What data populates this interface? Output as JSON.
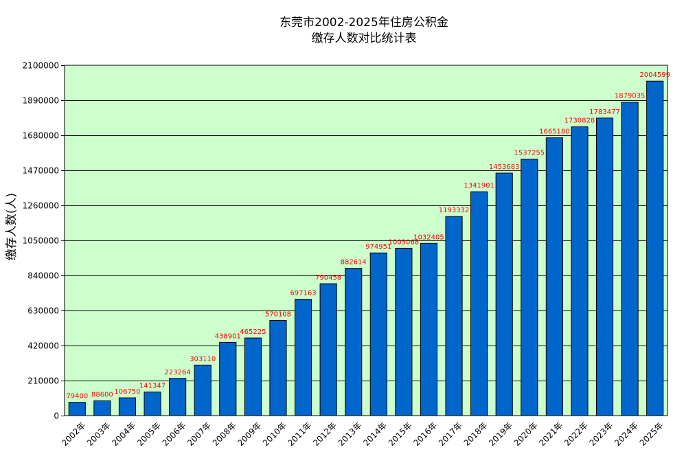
{
  "chart_data": {
    "type": "bar",
    "title_line1": "东莞市2002-2025年住房公积金",
    "title_line2": "缴存人数对比统计表",
    "xlabel": "",
    "ylabel": "缴存人数(人)",
    "ylim": [
      0,
      2100000
    ],
    "yticks": [
      0,
      210000,
      420000,
      630000,
      840000,
      1050000,
      1260000,
      1470000,
      1680000,
      1890000,
      2100000
    ],
    "grid": true,
    "legend": "none",
    "colors": {
      "plot_bg": "#ccffcc",
      "bar": "#0066cc",
      "bar_edge": "#000000",
      "label": "#ff0000",
      "grid": "#000000"
    },
    "categories": [
      "2002年",
      "2003年",
      "2004年",
      "2005年",
      "2006年",
      "2007年",
      "2008年",
      "2009年",
      "2010年",
      "2011年",
      "2012年",
      "2013年",
      "2014年",
      "2015年",
      "2016年",
      "2017年",
      "2018年",
      "2019年",
      "2020年",
      "2021年",
      "2022年",
      "2023年",
      "2024年",
      "2025年"
    ],
    "values": [
      79400,
      88600,
      106750,
      141347,
      223264,
      303110,
      438901,
      465225,
      570108,
      697163,
      790458,
      882614,
      974951,
      1003068,
      1032405,
      1193332,
      1341901,
      1453683,
      1537255,
      1665180,
      1730828,
      1783477,
      1879035,
      2004599
    ]
  }
}
